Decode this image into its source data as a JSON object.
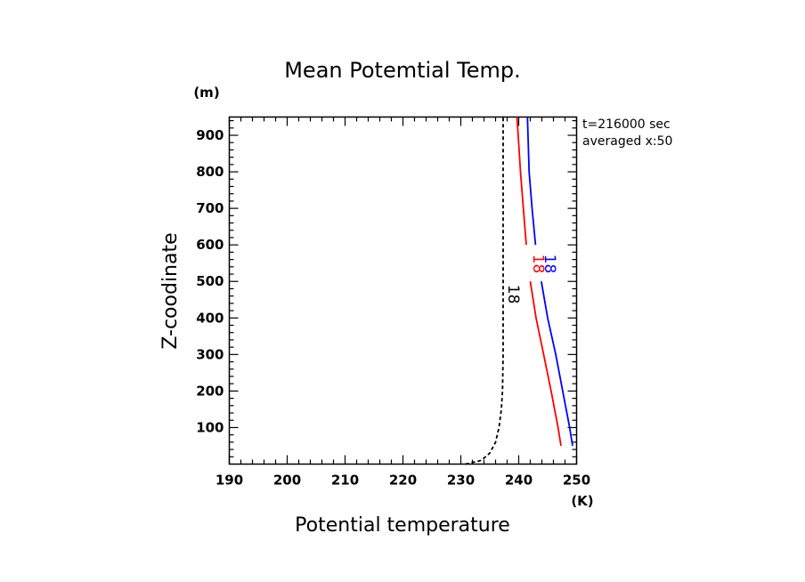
{
  "chart_data": {
    "type": "line",
    "title": "Mean Potemtial Temp.",
    "xlabel": "Potential temperature",
    "ylabel": "Z-coodinate",
    "x_unit": "(K)",
    "y_unit": "(m)",
    "xlim": [
      190,
      250
    ],
    "ylim": [
      0,
      950
    ],
    "x_ticks": [
      "190",
      "200",
      "210",
      "220",
      "230",
      "240",
      "250"
    ],
    "y_ticks": [
      "100",
      "200",
      "300",
      "400",
      "500",
      "600",
      "700",
      "800",
      "900"
    ],
    "annotations": [
      "t=216000 sec",
      "averaged  x:50"
    ],
    "series": [
      {
        "color": "#000000",
        "dash": "dashed",
        "label": "18",
        "x": [
          230.8,
          233.5,
          235.0,
          236.0,
          236.6,
          237.0,
          237.2,
          237.3,
          237.3,
          237.3,
          237.3,
          237.3,
          237.3
        ],
        "y": [
          0,
          10,
          30,
          60,
          100,
          150,
          200,
          300,
          400,
          500,
          600,
          800,
          950
        ]
      },
      {
        "color": "#ff0000",
        "dash": "solid",
        "label": "18",
        "x": [
          247.3,
          246.8,
          245.6,
          244.3,
          243.0,
          242.0,
          241.6,
          241.3,
          240.8,
          240.3,
          239.9,
          239.7
        ],
        "y": [
          50,
          100,
          200,
          300,
          400,
          500,
          550,
          600,
          700,
          800,
          900,
          950
        ]
      },
      {
        "color": "#0000ff",
        "dash": "solid",
        "label": "18",
        "x": [
          249.3,
          248.8,
          247.6,
          246.4,
          245.0,
          243.9,
          243.4,
          242.9,
          242.3,
          241.8,
          241.5
        ],
        "y": [
          50,
          100,
          200,
          300,
          400,
          500,
          550,
          600,
          700,
          800,
          950
        ]
      }
    ],
    "contour_labels": [
      {
        "text": "18",
        "color": "#000000",
        "x": 237.3,
        "y": 465
      },
      {
        "text": "18",
        "color": "#ff0000",
        "x": 241.6,
        "y": 548
      },
      {
        "text": "18",
        "color": "#0000ff",
        "x": 243.6,
        "y": 548
      }
    ]
  }
}
